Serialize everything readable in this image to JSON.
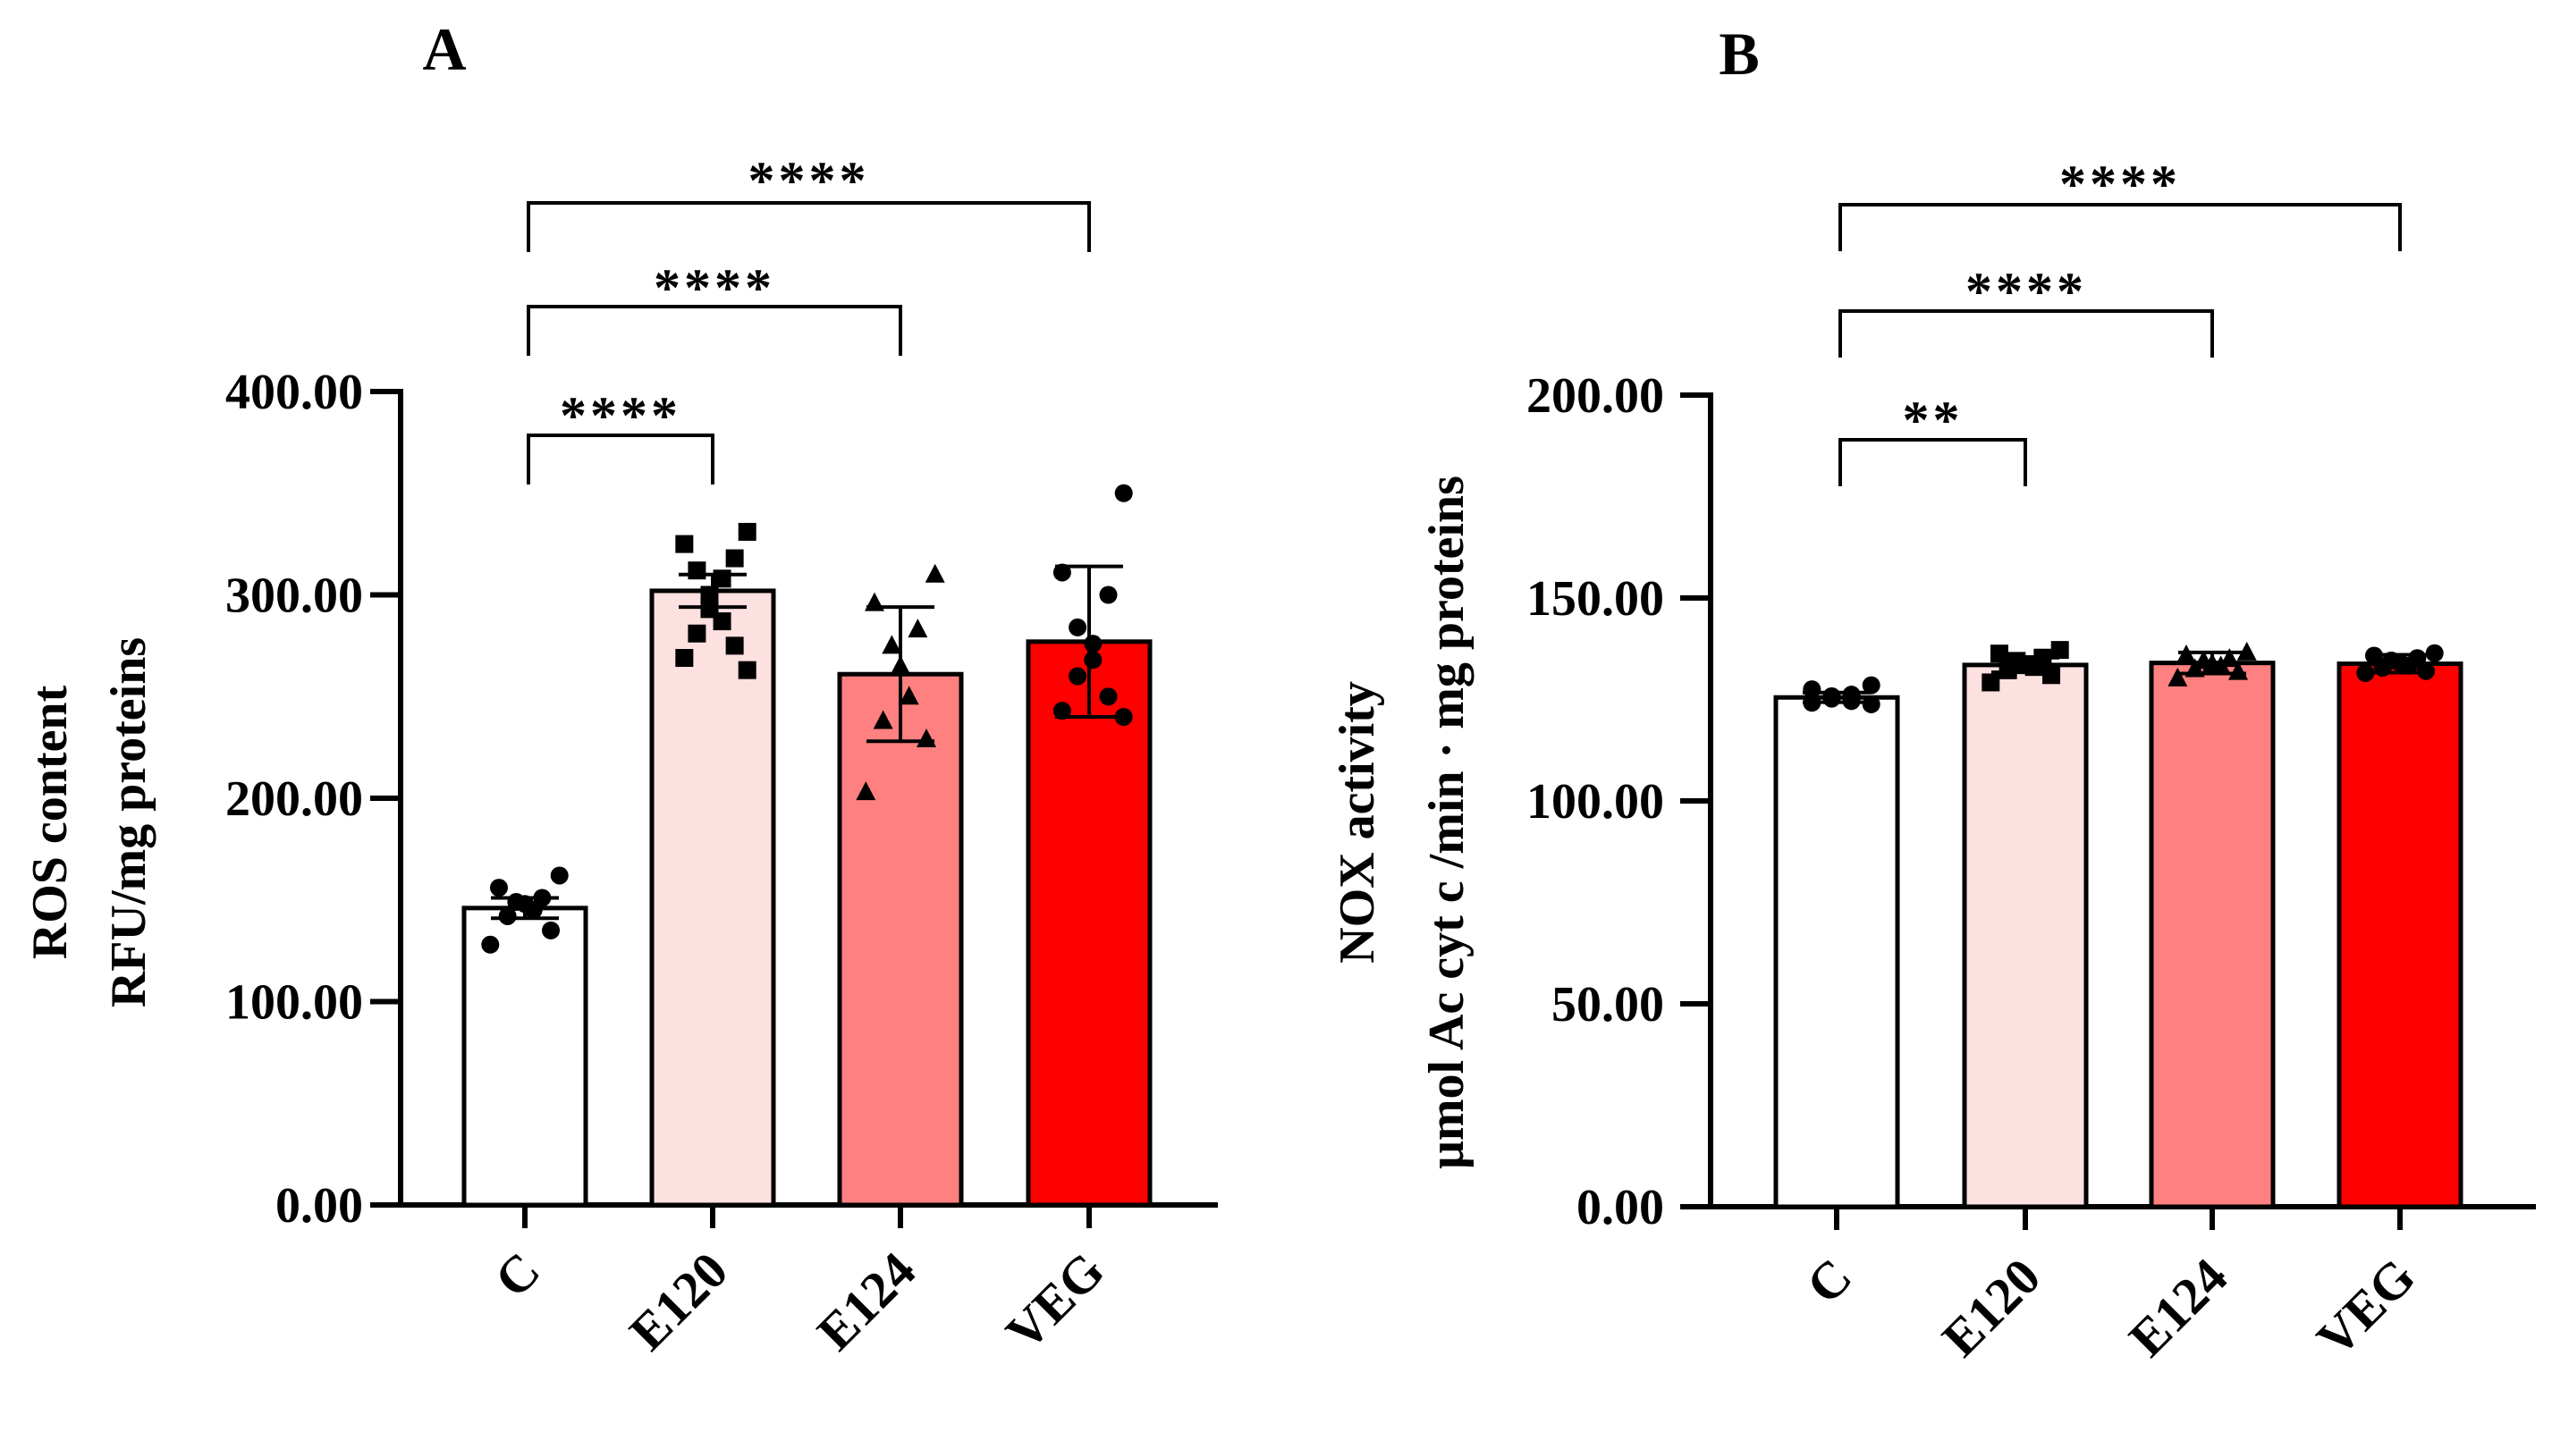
{
  "chart_data": [
    {
      "type": "bar",
      "panel": "A",
      "title": "",
      "xlabel": "",
      "ylabel_lines": [
        "ROS content",
        "RFU/mg proteins"
      ],
      "categories": [
        "C",
        "E120",
        "E124",
        "VEG"
      ],
      "values": [
        146,
        302,
        261,
        277
      ],
      "errors": [
        5,
        8,
        33,
        37
      ],
      "ylim": [
        0,
        400
      ],
      "yticks": [
        0,
        100,
        200,
        300,
        400
      ],
      "ytick_labels": [
        "0.00",
        "100.00",
        "200.00",
        "300.00",
        "400.00"
      ],
      "bar_colors": [
        "#ffffff",
        "#fde0e0",
        "#ff8080",
        "#ff0000"
      ],
      "marker_shapes": [
        "circle",
        "square",
        "triangle",
        "circle"
      ],
      "points": [
        [
          162,
          156,
          151,
          149,
          148,
          145,
          142,
          135,
          128
        ],
        [
          331,
          325,
          318,
          312,
          308,
          300,
          293,
          287,
          281,
          275,
          269,
          263
        ],
        [
          310,
          296,
          283,
          275,
          265,
          250,
          238,
          229,
          203
        ],
        [
          350,
          311,
          300,
          284,
          276,
          268,
          260,
          250,
          243,
          240
        ]
      ],
      "comparisons": [
        {
          "from": "C",
          "to": "E120",
          "label": "****"
        },
        {
          "from": "C",
          "to": "E124",
          "label": "****"
        },
        {
          "from": "C",
          "to": "VEG",
          "label": "****"
        }
      ]
    },
    {
      "type": "bar",
      "panel": "B",
      "title": "",
      "xlabel": "",
      "ylabel_lines": [
        "NOX activity",
        "μmol Ac cyt c /min · mg proteins"
      ],
      "categories": [
        "C",
        "E120",
        "E124",
        "VEG"
      ],
      "values": [
        125.5,
        133.5,
        134,
        133.8
      ],
      "errors": [
        1.2,
        1.8,
        2.6,
        2.2
      ],
      "ylim": [
        0,
        200
      ],
      "yticks": [
        0,
        50,
        100,
        150,
        200
      ],
      "ytick_labels": [
        "0.00",
        "50.00",
        "100.00",
        "150.00",
        "200.00"
      ],
      "bar_colors": [
        "#ffffff",
        "#fde0e0",
        "#ff8080",
        "#ff0000"
      ],
      "marker_shapes": [
        "circle",
        "square",
        "triangle",
        "circle"
      ],
      "points": [
        [
          128.5,
          127.5,
          126.2,
          125.8,
          125.2,
          124.6,
          124.2,
          123.8
        ],
        [
          137.2,
          136.3,
          135.3,
          134.5,
          133.7,
          133.0,
          132.2,
          131.0,
          129.2
        ],
        [
          136.6,
          135.9,
          135.0,
          134.5,
          133.8,
          133.2,
          132.5,
          131.8,
          130.2
        ],
        [
          136.4,
          135.8,
          135.2,
          134.6,
          134.0,
          133.3,
          132.8,
          132.0,
          131.5
        ]
      ],
      "comparisons": [
        {
          "from": "C",
          "to": "E120",
          "label": "**"
        },
        {
          "from": "C",
          "to": "E124",
          "label": "****"
        },
        {
          "from": "C",
          "to": "VEG",
          "label": "****"
        }
      ]
    }
  ]
}
